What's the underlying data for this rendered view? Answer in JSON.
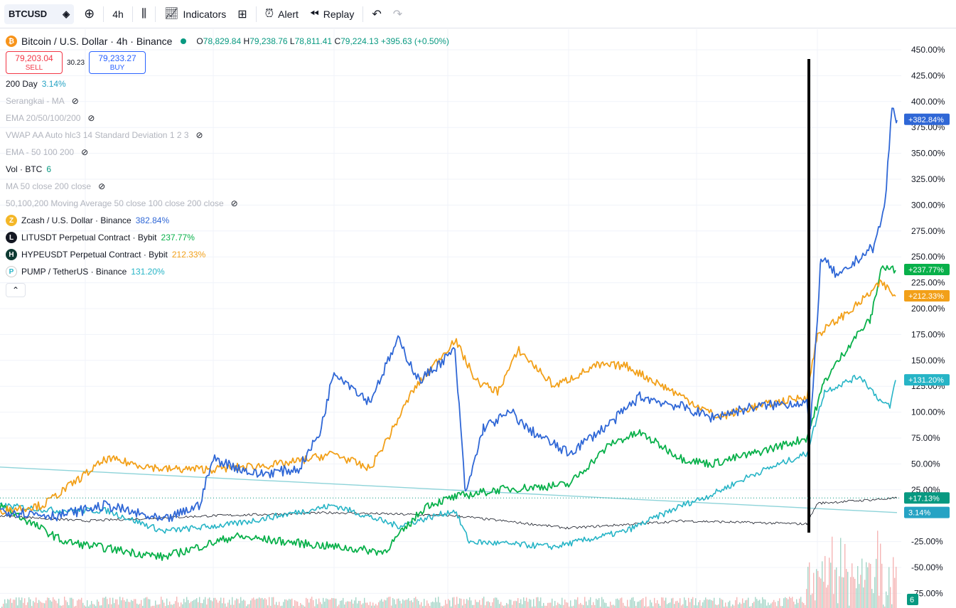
{
  "toolbar": {
    "symbol": "BTCUSD",
    "interval": "4h",
    "indicators_label": "Indicators",
    "alert_label": "Alert",
    "replay_label": "Replay"
  },
  "legend": {
    "title": "Bitcoin / U.S. Dollar · 4h · Binance",
    "ohlc": {
      "o_label": "O",
      "o": "78,829.84",
      "h_label": "H",
      "h": "79,238.76",
      "l_label": "L",
      "l": "78,811.41",
      "c_label": "C",
      "c": "79,224.13",
      "change": "+395.63 (+0.50%)"
    },
    "sell_price": "79,203.04",
    "sell_label": "SELL",
    "spread": "30.23",
    "buy_price": "79,233.27",
    "buy_label": "BUY",
    "indicators": [
      {
        "name": "200 Day",
        "value": "3.14%",
        "hidden": false,
        "value_color": "#26a3c4"
      },
      {
        "name": "Serangkai - MA",
        "value": "",
        "hidden": true
      },
      {
        "name": "EMA 20/50/100/200",
        "value": "",
        "hidden": true
      },
      {
        "name": "VWAP AA Auto hlc3 14 Standard Deviation 1 2 3",
        "value": "",
        "hidden": true
      },
      {
        "name": "EMA - 50 100 200",
        "value": "",
        "hidden": true
      },
      {
        "name": "Vol · BTC",
        "value": "6",
        "hidden": false,
        "value_color": "#089981"
      },
      {
        "name": "MA 50 close 200 close",
        "value": "",
        "hidden": true
      },
      {
        "name": "50,100,200 Moving Average 50 close 100 close 200 close",
        "value": "",
        "hidden": true
      }
    ],
    "compare": [
      {
        "name": "Zcash / U.S. Dollar · Binance",
        "value": "382.84%",
        "color": "#2f67d6",
        "icon_bg": "#f4b728",
        "icon_char": "Z"
      },
      {
        "name": "LITUSDT Perpetual Contract · Bybit",
        "value": "237.77%",
        "color": "#08b04a",
        "icon_bg": "#131722",
        "icon_char": "L"
      },
      {
        "name": "HYPEUSDT Perpetual Contract · Bybit",
        "value": "212.33%",
        "color": "#f2a019",
        "icon_bg": "#0e3b33",
        "icon_char": "H"
      },
      {
        "name": "PUMP / TetherUS · Binance",
        "value": "131.20%",
        "color": "#26b4c6",
        "icon_bg": "#ffffff",
        "icon_char": "P"
      }
    ]
  },
  "price_axis": {
    "ticks": [
      "450.00%",
      "425.00%",
      "400.00%",
      "375.00%",
      "350.00%",
      "325.00%",
      "300.00%",
      "275.00%",
      "250.00%",
      "225.00%",
      "200.00%",
      "175.00%",
      "150.00%",
      "125.00%",
      "100.00%",
      "75.00%",
      "50.00%",
      "25.00%",
      "-25.00%",
      "-50.00%",
      "-75.00%"
    ],
    "badges": [
      {
        "label": "+382.84%",
        "color": "#2f67d6"
      },
      {
        "label": "+237.77%",
        "color": "#08b04a"
      },
      {
        "label": "+212.33%",
        "color": "#f2a019"
      },
      {
        "label": "+131.20%",
        "color": "#26b4c6"
      },
      {
        "label": "+17.13%",
        "color": "#089981"
      },
      {
        "label": "3.14%",
        "color": "#26a3c4"
      },
      {
        "label": "6",
        "color": "#089981"
      }
    ]
  },
  "colors": {
    "zec": "#2f67d6",
    "lit": "#08b04a",
    "hype": "#f2a019",
    "pump": "#26b4c6",
    "btc": "#131722",
    "ma200": "#8dd3d9",
    "marker": "#000000"
  }
}
